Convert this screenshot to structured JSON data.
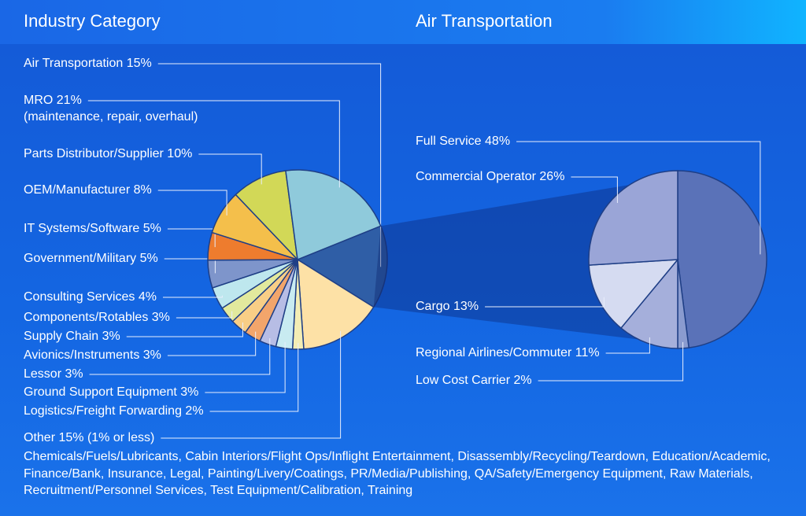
{
  "chart_data": [
    {
      "type": "pie",
      "title": "Industry Category",
      "categories": [
        "Air Transportation",
        "Other",
        "Logistics/Freight Forwarding",
        "Ground Support Equipment",
        "Lessor",
        "Avionics/Instruments",
        "Supply Chain",
        "Components/Rotables",
        "Consulting Services",
        "Government/Military",
        "IT Systems/Software",
        "OEM/Manufacturer",
        "Parts Distributor/Supplier",
        "MRO"
      ],
      "values": [
        15,
        15,
        2,
        3,
        3,
        3,
        3,
        3,
        4,
        5,
        5,
        8,
        10,
        21
      ],
      "value_labels": [
        "15%",
        "15%",
        "2%",
        "3%",
        "3%",
        "3%",
        "3%",
        "3%",
        "4%",
        "5%",
        "5%",
        "8%",
        "10%",
        "21%"
      ],
      "colors": [
        "#2f5ea6",
        "#fde1a6",
        "#f3edb4",
        "#c8ebf1",
        "#b7bde5",
        "#f2a56b",
        "#f8ce86",
        "#e2e99d",
        "#bee7ee",
        "#7e95cb",
        "#ee7c2e",
        "#f4bf4b",
        "#d2d857",
        "#8fcadb"
      ],
      "annotations": [
        "(maintenance, repair, overhaul)",
        "(1% or less)",
        "Chemicals/Fuels/Lubricants, Cabin Interiors/Flight Ops/Inflight Entertainment, Disassembly/Recycling/Teardown, Education/Academic, Finance/Bank, Insurance, Legal, Painting/Livery/Coatings, PR/Media/Publishing, QA/Safety/Emergency Equipment, Raw Materials, Recruitment/Personnel Services, Test Equipment/Calibration, Training"
      ]
    },
    {
      "type": "pie",
      "title": "Air Transportation",
      "categories": [
        "Full Service",
        "Low Cost Carrier",
        "Regional Airlines/Commuter",
        "Cargo",
        "Commercial Operator"
      ],
      "values": [
        48,
        2,
        11,
        13,
        26
      ],
      "value_labels": [
        "48%",
        "2%",
        "11%",
        "13%",
        "26%"
      ],
      "colors": [
        "#5a72b8",
        "#8a9bcf",
        "#a5afdb",
        "#d5dbf1",
        "#9aa5d7"
      ]
    }
  ]
}
